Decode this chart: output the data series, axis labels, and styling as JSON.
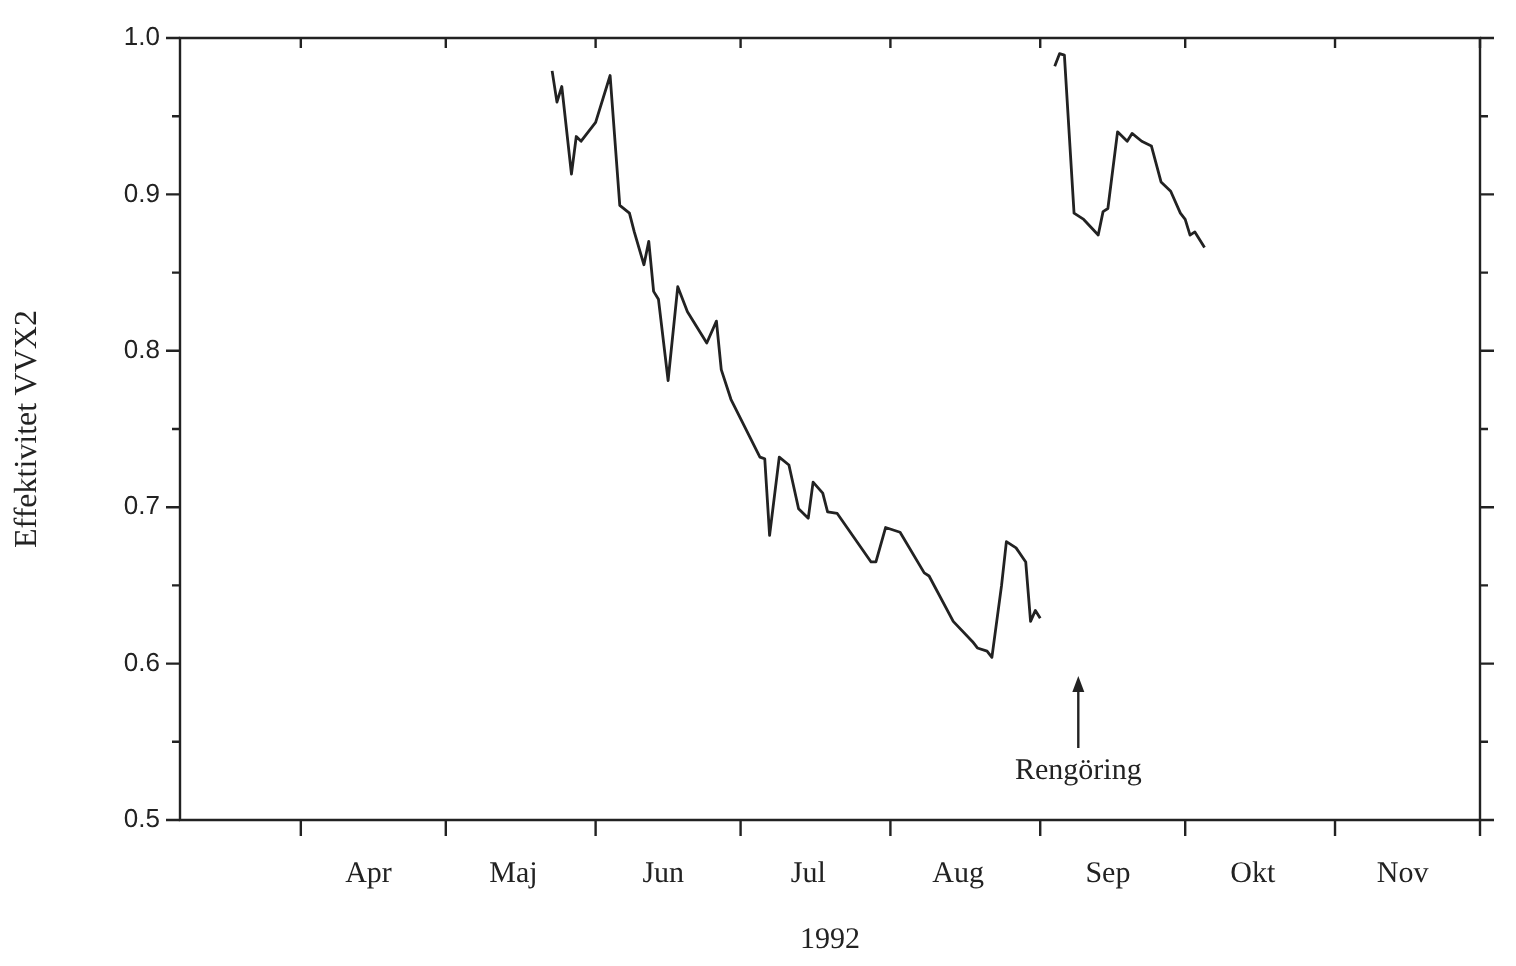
{
  "chart_data": {
    "type": "line",
    "xlabel": "1992",
    "ylabel": "Effektivitet VVX2",
    "x": [
      "1992-05-23",
      "1992-05-24",
      "1992-05-25",
      "1992-05-27",
      "1992-05-28",
      "1992-05-29",
      "1992-06-01",
      "1992-06-04",
      "1992-06-06",
      "1992-06-08",
      "1992-06-09",
      "1992-06-11",
      "1992-06-12",
      "1992-06-13",
      "1992-06-14",
      "1992-06-16",
      "1992-06-18",
      "1992-06-20",
      "1992-06-24",
      "1992-06-26",
      "1992-06-27",
      "1992-06-29",
      "1992-07-05",
      "1992-07-06",
      "1992-07-07",
      "1992-07-09",
      "1992-07-11",
      "1992-07-13",
      "1992-07-15",
      "1992-07-16",
      "1992-07-18",
      "1992-07-19",
      "1992-07-21",
      "1992-07-28",
      "1992-07-29",
      "1992-07-31",
      "1992-08-03",
      "1992-08-08",
      "1992-08-09",
      "1992-08-14",
      "1992-08-18",
      "1992-08-19",
      "1992-08-21",
      "1992-08-22",
      "1992-08-24",
      "1992-08-25",
      "1992-08-27",
      "1992-08-29",
      "1992-08-30",
      "1992-08-31",
      "1992-09-01",
      "1992-09-02",
      "1992-09-04",
      "1992-09-05",
      "1992-09-06",
      "1992-09-08",
      "1992-09-10",
      "1992-09-13",
      "1992-09-14",
      "1992-09-15",
      "1992-09-17",
      "1992-09-18",
      "1992-09-19",
      "1992-09-20",
      "1992-09-22",
      "1992-09-24",
      "1992-09-26",
      "1992-09-28",
      "1992-09-30",
      "1992-10-01",
      "1992-10-02",
      "1992-10-03",
      "1992-10-05"
    ],
    "series": [
      {
        "color": "#222222",
        "values": [
          0.979,
          0.959,
          0.969,
          0.913,
          0.937,
          0.934,
          0.946,
          0.976,
          0.893,
          0.888,
          0.876,
          0.855,
          0.87,
          0.838,
          0.833,
          0.781,
          0.841,
          0.825,
          0.805,
          0.819,
          0.788,
          0.769,
          0.732,
          0.731,
          0.682,
          0.732,
          0.727,
          0.699,
          0.693,
          0.716,
          0.709,
          0.697,
          0.696,
          0.665,
          0.665,
          0.687,
          0.684,
          0.658,
          0.656,
          0.627,
          0.614,
          0.61,
          0.608,
          0.604,
          0.65,
          0.678,
          0.674,
          0.665,
          0.627,
          0.634,
          0.629,
          null,
          0.982,
          0.99,
          0.989,
          0.888,
          0.884,
          0.874,
          0.889,
          0.891,
          0.94,
          0.937,
          0.934,
          0.939,
          0.934,
          0.931,
          0.908,
          0.902,
          0.888,
          0.884,
          0.874,
          0.876,
          0.866
        ]
      }
    ],
    "xlim": [
      "1992-03-07",
      "1992-12-01"
    ],
    "xticks": [
      {
        "value": "1992-04-01",
        "label": null
      },
      {
        "value": "1992-04-15",
        "label": "Apr"
      },
      {
        "value": "1992-05-01",
        "label": null
      },
      {
        "value": "1992-05-15",
        "label": "Maj"
      },
      {
        "value": "1992-06-01",
        "label": null
      },
      {
        "value": "1992-06-15",
        "label": "Jun"
      },
      {
        "value": "1992-07-01",
        "label": null
      },
      {
        "value": "1992-07-15",
        "label": "Jul"
      },
      {
        "value": "1992-08-01",
        "label": null
      },
      {
        "value": "1992-08-15",
        "label": "Aug"
      },
      {
        "value": "1992-09-01",
        "label": null
      },
      {
        "value": "1992-09-15",
        "label": "Sep"
      },
      {
        "value": "1992-10-01",
        "label": null
      },
      {
        "value": "1992-10-15",
        "label": "Okt"
      },
      {
        "value": "1992-11-01",
        "label": null
      },
      {
        "value": "1992-11-15",
        "label": "Nov"
      },
      {
        "value": "1992-12-01",
        "label": null
      }
    ],
    "ylim": [
      0.5,
      1.0
    ],
    "yticks": [
      {
        "value": 0.5,
        "label": "0.5"
      },
      {
        "value": 0.55,
        "label": null
      },
      {
        "value": 0.6,
        "label": "0.6"
      },
      {
        "value": 0.65,
        "label": null
      },
      {
        "value": 0.7,
        "label": "0.7"
      },
      {
        "value": 0.75,
        "label": null
      },
      {
        "value": 0.8,
        "label": "0.8"
      },
      {
        "value": 0.85,
        "label": null
      },
      {
        "value": 0.9,
        "label": "0.9"
      },
      {
        "value": 0.95,
        "label": null
      },
      {
        "value": 1.0,
        "label": "1.0"
      }
    ],
    "annotations": [
      "Rengöring"
    ],
    "grid": false,
    "legend": false,
    "marker": "none",
    "line_style": "solid"
  }
}
